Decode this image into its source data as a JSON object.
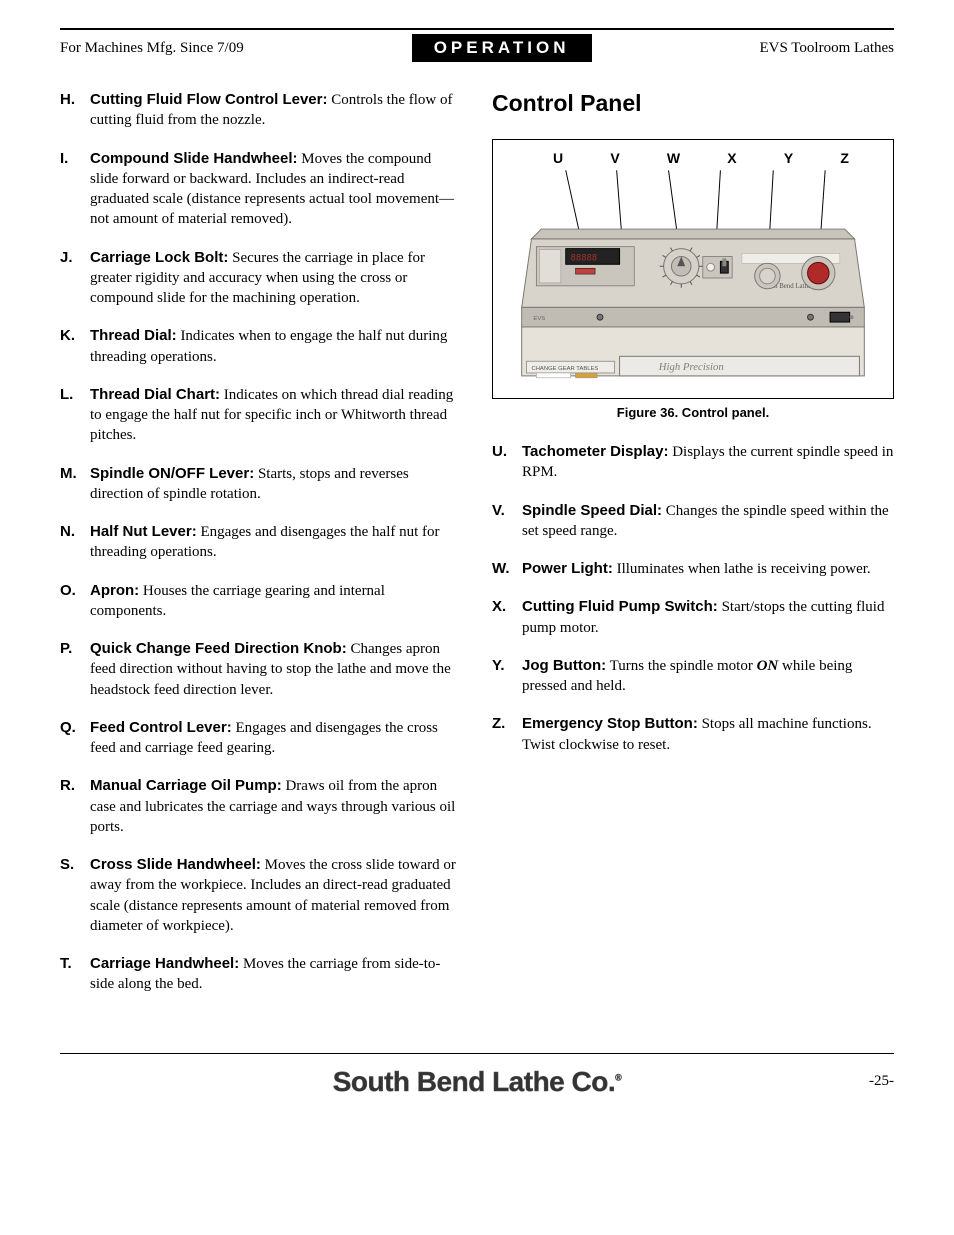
{
  "header": {
    "left": "For Machines Mfg. Since 7/09",
    "center": "OPERATION",
    "right": "EVS Toolroom Lathes"
  },
  "left_items": [
    {
      "letter": "H.",
      "term": "Cutting Fluid Flow Control Lever:",
      "desc": " Controls the flow of cutting fluid from the nozzle."
    },
    {
      "letter": "I.",
      "term": "Compound Slide Handwheel:",
      "desc": " Moves the compound slide forward or backward. Includes an indirect-read graduated scale (distance represents actual tool movement—not amount of material removed)."
    },
    {
      "letter": "J.",
      "term": "Carriage Lock Bolt:",
      "desc": " Secures the carriage in place for greater rigidity and accuracy when using the cross or compound slide for the machining operation."
    },
    {
      "letter": "K.",
      "term": "Thread Dial:",
      "desc": " Indicates when to engage the half nut during threading operations."
    },
    {
      "letter": "L.",
      "term": "Thread Dial Chart:",
      "desc": " Indicates on which thread dial reading to engage the half nut for specific inch or Whitworth thread pitches."
    },
    {
      "letter": "M.",
      "term": "Spindle ON/OFF Lever:",
      "desc": " Starts, stops and reverses direction of spindle rotation."
    },
    {
      "letter": "N.",
      "term": "Half Nut Lever:",
      "desc": " Engages and disengages the half nut for threading operations."
    },
    {
      "letter": "O.",
      "term": "Apron:",
      "desc": " Houses the carriage gearing and internal components."
    },
    {
      "letter": "P.",
      "term": "Quick Change Feed Direction Knob:",
      "desc": " Changes apron feed direction without having to stop the lathe and move the headstock feed direction lever."
    },
    {
      "letter": "Q.",
      "term": "Feed Control Lever:",
      "desc": " Engages and disengages the cross feed and carriage feed gearing."
    },
    {
      "letter": "R.",
      "term": "Manual Carriage Oil Pump:",
      "desc": " Draws oil from the apron case and lubricates the carriage and ways through various oil ports."
    },
    {
      "letter": "S.",
      "term": "Cross Slide Handwheel:",
      "desc": " Moves the cross slide toward or away from the workpiece. Includes an direct-read graduated scale (distance represents amount of material removed from diameter of workpiece)."
    },
    {
      "letter": "T.",
      "term": "Carriage Handwheel:",
      "desc": " Moves the carriage from side-to-side along the bed."
    }
  ],
  "right_section_title": "Control Panel",
  "figure": {
    "labels": [
      "U",
      "V",
      "W",
      "X",
      "Y",
      "Z"
    ],
    "caption": "Figure 36. Control panel.",
    "panel_text_brand": "South Bend Lathe Co.",
    "panel_text_hp": "High Precision",
    "panel_text_cgt": "CHANGE GEAR TABLES",
    "colors": {
      "panel_fill": "#d8d4cc",
      "panel_stroke": "#7a7670",
      "dark": "#4a4640",
      "display_bg": "#222",
      "display_fg": "#a83030",
      "hp_fill": "#eceae6",
      "red_btn": "#b02a2a",
      "label_box": "#efede8"
    }
  },
  "right_items": [
    {
      "letter": "U.",
      "term": "Tachometer Display:",
      "desc": " Displays the current spindle speed in RPM."
    },
    {
      "letter": "V.",
      "term": "Spindle Speed Dial:",
      "desc": " Changes the spindle speed within the set speed range."
    },
    {
      "letter": "W.",
      "term": "Power Light:",
      "desc": " Illuminates when lathe is receiving power."
    },
    {
      "letter": "X.",
      "term": "Cutting Fluid Pump Switch:",
      "desc": " Start/stops the cutting fluid pump motor."
    },
    {
      "letter": "Y.",
      "term": "Jog Button:",
      "desc_pre": " Turns the spindle motor ",
      "on_word": "ON",
      "desc_post": " while being pressed and held."
    },
    {
      "letter": "Z.",
      "term": "Emergency Stop Button:",
      "desc": " Stops all machine functions. Twist clockwise to reset."
    }
  ],
  "footer": {
    "logo": "South Bend Lathe Co.",
    "page": "-25-"
  }
}
